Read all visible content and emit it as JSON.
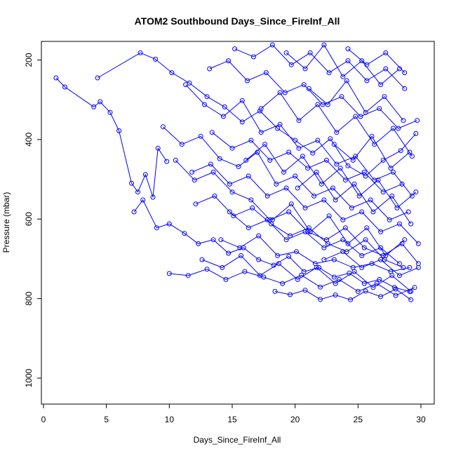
{
  "chart_data": {
    "type": "line",
    "title": "ATOM2 Southbound Days_Since_FireInf_All",
    "xlabel": "Days_Since_FireInf_All",
    "ylabel": "Pressure (mbar)",
    "xlim": [
      0,
      30
    ],
    "ylim": [
      1060,
      150
    ],
    "y_axis_inverted": true,
    "xticks": [
      0,
      5,
      10,
      15,
      20,
      25,
      30
    ],
    "yticks": [
      200,
      400,
      600,
      800,
      1000
    ],
    "grid": false,
    "legend": "none",
    "series_color": "#0000ff",
    "marker": "open-circle",
    "series": [
      {
        "x": [
          1.0,
          1.7,
          4.0,
          4.5,
          5.3,
          6.0,
          7.0,
          7.5,
          8.1,
          8.7,
          9.1,
          9.8
        ],
        "y": [
          245,
          268,
          318,
          305,
          332,
          378,
          510,
          532,
          488,
          545,
          422,
          455
        ]
      },
      {
        "x": [
          4.3,
          7.7,
          8.9,
          10.2,
          11.6,
          13.0,
          14.4,
          15.8,
          17.2,
          18.6,
          20.0,
          21.4,
          22.8,
          24.2,
          25.6,
          27.0,
          28.4,
          29.6
        ],
        "y": [
          245,
          182,
          198,
          232,
          258,
          292,
          318,
          356,
          328,
          372,
          402,
          434,
          398,
          466,
          492,
          452,
          428,
          385
        ]
      },
      {
        "x": [
          7.2,
          7.9,
          9.0,
          10.0,
          11.2,
          12.3,
          13.5,
          14.7,
          15.9,
          17.1,
          18.3,
          19.5,
          20.7,
          21.9,
          23.1,
          24.3,
          25.5,
          26.7,
          27.9,
          29.1
        ],
        "y": [
          582,
          552,
          622,
          612,
          636,
          662,
          652,
          686,
          672,
          702,
          716,
          694,
          732,
          722,
          746,
          736,
          762,
          752,
          772,
          782
        ]
      },
      {
        "x": [
          10.0,
          11.5,
          13.0,
          14.5,
          16.0,
          17.5,
          19.0,
          20.5,
          22.0,
          23.5,
          25.0,
          26.5,
          28.0,
          29.5
        ],
        "y": [
          737,
          742,
          726,
          752,
          732,
          746,
          762,
          741,
          771,
          752,
          782,
          762,
          792,
          772
        ]
      },
      {
        "x": [
          18.4,
          19.6,
          20.8,
          22.0,
          23.2,
          24.4,
          25.6,
          26.8,
          28.0,
          29.2
        ],
        "y": [
          782,
          790,
          779,
          802,
          791,
          803,
          781,
          795,
          776,
          803
        ]
      },
      {
        "x": [
          9.5,
          11.0,
          12.5,
          14.0,
          15.5,
          17.0,
          18.5,
          20.0,
          21.5,
          23.0,
          24.5,
          26.0,
          27.5,
          29.0
        ],
        "y": [
          368,
          412,
          392,
          448,
          468,
          432,
          512,
          492,
          542,
          522,
          572,
          552,
          602,
          582
        ]
      },
      {
        "x": [
          10.5,
          12.0,
          13.5,
          15.0,
          16.5,
          18.0,
          19.5,
          21.0,
          22.5,
          24.0,
          25.5,
          27.0,
          28.5,
          29.8
        ],
        "y": [
          452,
          502,
          482,
          532,
          552,
          602,
          582,
          632,
          652,
          622,
          672,
          692,
          662,
          712
        ]
      },
      {
        "x": [
          11.3,
          12.8,
          14.3,
          15.8,
          17.3,
          18.8,
          20.3,
          21.8,
          23.3,
          24.8,
          26.3,
          27.8,
          29.3
        ],
        "y": [
          262,
          312,
          342,
          302,
          382,
          362,
          422,
          402,
          462,
          442,
          502,
          482,
          542
        ]
      },
      {
        "x": [
          12.1,
          13.6,
          15.1,
          16.6,
          18.1,
          19.6,
          21.1,
          22.6,
          24.1,
          25.6,
          27.1,
          28.6
        ],
        "y": [
          562,
          542,
          592,
          572,
          612,
          642,
          622,
          662,
          682,
          652,
          702,
          722
        ]
      },
      {
        "x": [
          13.2,
          14.7,
          16.2,
          17.7,
          19.2,
          20.7,
          22.2,
          23.7,
          25.2,
          26.7,
          28.2,
          29.7
        ],
        "y": [
          222,
          202,
          252,
          232,
          282,
          262,
          312,
          292,
          342,
          322,
          372,
          352
        ]
      },
      {
        "x": [
          14.1,
          15.6,
          17.1,
          18.6,
          20.1,
          21.6,
          23.1,
          24.6,
          26.1,
          27.6,
          29.1
        ],
        "y": [
          652,
          672,
          642,
          692,
          682,
          712,
          702,
          722,
          712,
          732,
          722
        ]
      },
      {
        "x": [
          15.2,
          16.7,
          18.2,
          19.7,
          21.2,
          22.7,
          24.2,
          25.7,
          27.2,
          28.7
        ],
        "y": [
          172,
          192,
          162,
          212,
          182,
          232,
          202,
          252,
          222,
          272
        ]
      },
      {
        "x": [
          16.1,
          17.6,
          19.1,
          20.6,
          22.1,
          23.6,
          25.1,
          26.6,
          28.1,
          29.6
        ],
        "y": [
          452,
          412,
          482,
          442,
          512,
          472,
          542,
          502,
          572,
          532
        ]
      },
      {
        "x": [
          17.3,
          18.8,
          20.3,
          21.8,
          23.3,
          24.8,
          26.3,
          27.8,
          29.3
        ],
        "y": [
          322,
          282,
          352,
          312,
          382,
          342,
          412,
          372,
          442
        ]
      },
      {
        "x": [
          18.2,
          19.7,
          21.2,
          22.7,
          24.2,
          25.7,
          27.2,
          28.7
        ],
        "y": [
          602,
          562,
          632,
          592,
          662,
          622,
          692,
          652
        ]
      },
      {
        "x": [
          19.3,
          20.8,
          22.3,
          23.8,
          25.3,
          26.8,
          28.3
        ],
        "y": [
          182,
          222,
          162,
          242,
          202,
          262,
          222
        ]
      },
      {
        "x": [
          20.2,
          21.7,
          23.2,
          24.7,
          26.2,
          27.7,
          29.2
        ],
        "y": [
          522,
          482,
          552,
          512,
          582,
          542,
          612
        ]
      },
      {
        "x": [
          21.1,
          22.6,
          24.1,
          25.6,
          27.1,
          28.6
        ],
        "y": [
          272,
          312,
          252,
          332,
          292,
          352
        ]
      },
      {
        "x": [
          22.3,
          23.8,
          25.3,
          26.8,
          28.3,
          29.8
        ],
        "y": [
          702,
          682,
          722,
          702,
          742,
          722
        ]
      },
      {
        "x": [
          23.1,
          24.6,
          26.1,
          27.6,
          29.1
        ],
        "y": [
          412,
          452,
          392,
          472,
          432
        ]
      },
      {
        "x": [
          24.2,
          25.7,
          27.2,
          28.7
        ],
        "y": [
          172,
          212,
          182,
          232
        ]
      },
      {
        "x": [
          12.6,
          14.2,
          15.7,
          17.2,
          18.7,
          20.2,
          21.7,
          23.2,
          24.7,
          26.2,
          27.7,
          29.2
        ],
        "y": [
          702,
          722,
          692,
          742,
          712,
          752,
          722,
          762,
          732,
          772,
          742,
          782
        ]
      },
      {
        "x": [
          13.4,
          15.0,
          16.5,
          18.0,
          19.5,
          21.0,
          22.5,
          24.0,
          25.5,
          27.0,
          28.5
        ],
        "y": [
          382,
          422,
          402,
          452,
          432,
          472,
          452,
          502,
          482,
          532,
          512
        ]
      },
      {
        "x": [
          14.8,
          16.3,
          17.8,
          19.3,
          20.8,
          22.3,
          23.8,
          25.3,
          26.8,
          28.3
        ],
        "y": [
          582,
          622,
          602,
          652,
          632,
          672,
          652,
          692,
          672,
          712
        ]
      },
      {
        "x": [
          11.8,
          13.3,
          14.8,
          16.3,
          17.8,
          19.3,
          20.8,
          22.3,
          23.8,
          25.3,
          26.8,
          28.3,
          29.8
        ],
        "y": [
          482,
          462,
          512,
          492,
          542,
          522,
          572,
          552,
          602,
          582,
          632,
          612,
          662
        ]
      }
    ]
  }
}
